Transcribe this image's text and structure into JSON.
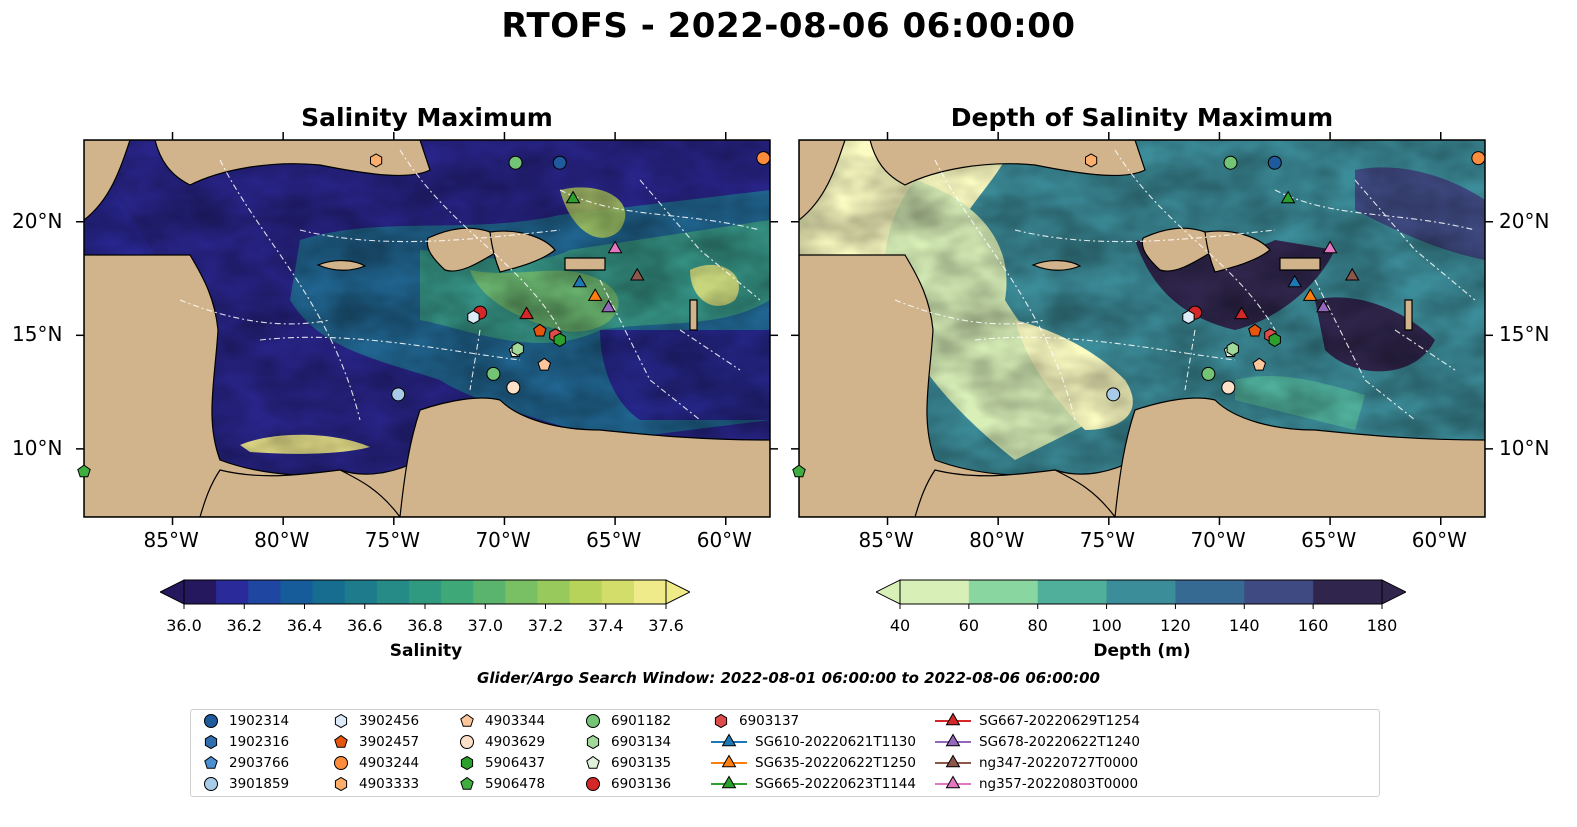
{
  "suptitle": "RTOFS - 2022-08-06 06:00:00",
  "panels": [
    {
      "title": "Salinity Maximum",
      "field": "salinity"
    },
    {
      "title": "Depth of Salinity Maximum",
      "field": "depth"
    }
  ],
  "map": {
    "lon_range": [
      -89,
      -58
    ],
    "lat_range": [
      7,
      23.6
    ],
    "lon_ticks": [
      -85,
      -80,
      -75,
      -70,
      -65,
      -60
    ],
    "lon_tick_labels": [
      "85°W",
      "80°W",
      "75°W",
      "70°W",
      "65°W",
      "60°W"
    ],
    "lat_ticks": [
      10,
      15,
      20
    ],
    "lat_tick_labels": [
      "10°N",
      "15°N",
      "20°N"
    ],
    "land_color": "#d2b48c",
    "lake_color": "#8eb4e3"
  },
  "colorbars": [
    {
      "label": "Salinity",
      "ticks": [
        "36.0",
        "36.2",
        "36.4",
        "36.6",
        "36.8",
        "37.0",
        "37.2",
        "37.4",
        "37.6"
      ],
      "colors": [
        "#26185f",
        "#2a2a9a",
        "#1f46a0",
        "#165b9a",
        "#166d8f",
        "#1d7b8b",
        "#268a86",
        "#2f9a7f",
        "#3fa878",
        "#5ab46e",
        "#79bf64",
        "#98c95c",
        "#b7d35a",
        "#d3dd6a",
        "#f0eb8a"
      ],
      "extend": "both"
    },
    {
      "label": "Depth (m)",
      "ticks": [
        "40",
        "60",
        "80",
        "100",
        "120",
        "140",
        "160",
        "180"
      ],
      "colors": [
        "#d8efb8",
        "#8ad6a1",
        "#4faf9b",
        "#3c8d9a",
        "#376a93",
        "#3f4a82",
        "#30264d"
      ],
      "extend": "both"
    }
  ],
  "search_window": "Glider/Argo Search Window: 2022-08-01 06:00:00 to 2022-08-06 06:00:00",
  "legend": [
    {
      "label": "1902314",
      "marker": "circle",
      "color": "#1f5a9c"
    },
    {
      "label": "1902316",
      "marker": "hexagon",
      "color": "#2f6faf"
    },
    {
      "label": "2903766",
      "marker": "pentagon",
      "color": "#4a90d0"
    },
    {
      "label": "3901859",
      "marker": "circle",
      "color": "#a8cce8"
    },
    {
      "label": "3902456",
      "marker": "hexagon",
      "color": "#dcebf7"
    },
    {
      "label": "3902457",
      "marker": "pentagon",
      "color": "#e6550d"
    },
    {
      "label": "4903244",
      "marker": "circle",
      "color": "#fd8d3c"
    },
    {
      "label": "4903333",
      "marker": "hexagon",
      "color": "#fdae6b"
    },
    {
      "label": "4903344",
      "marker": "pentagon",
      "color": "#fdc79b"
    },
    {
      "label": "4903629",
      "marker": "circle",
      "color": "#fde0c8"
    },
    {
      "label": "5906437",
      "marker": "hexagon",
      "color": "#2ca02c"
    },
    {
      "label": "5906478",
      "marker": "pentagon",
      "color": "#3fae3f"
    },
    {
      "label": "6901182",
      "marker": "circle",
      "color": "#74c476"
    },
    {
      "label": "6903134",
      "marker": "hexagon",
      "color": "#a1d99b"
    },
    {
      "label": "6903135",
      "marker": "pentagon",
      "color": "#dff3da"
    },
    {
      "label": "6903136",
      "marker": "circle",
      "color": "#d62728"
    },
    {
      "label": "6903137",
      "marker": "hexagon",
      "color": "#de4b4b"
    },
    {
      "label": "SG610-20220621T1130",
      "marker": "triangle",
      "color": "#1f77b4"
    },
    {
      "label": "SG635-20220622T1250",
      "marker": "triangle",
      "color": "#ff7f0e"
    },
    {
      "label": "SG665-20220623T1144",
      "marker": "triangle",
      "color": "#2ca02c"
    },
    {
      "label": "SG667-20220629T1254",
      "marker": "triangle",
      "color": "#d62728"
    },
    {
      "label": "SG678-20220622T1240",
      "marker": "triangle",
      "color": "#9467bd"
    },
    {
      "label": "ng347-20220727T0000",
      "marker": "triangle",
      "color": "#8c564b"
    },
    {
      "label": "ng357-20220803T0000",
      "marker": "triangle",
      "color": "#e377c2"
    }
  ],
  "observations": [
    {
      "id": "1902314",
      "lon": -67.5,
      "lat": 22.6
    },
    {
      "id": "6901182",
      "lon": -69.5,
      "lat": 22.6
    },
    {
      "id": "4903244",
      "lon": -58.3,
      "lat": 22.8
    },
    {
      "id": "4903333",
      "lon": -75.8,
      "lat": 22.7
    },
    {
      "id": "3901859",
      "lon": -74.8,
      "lat": 12.4
    },
    {
      "id": "6903136",
      "lon": -71.1,
      "lat": 16.0
    },
    {
      "id": "3902456",
      "lon": -71.4,
      "lat": 15.8
    },
    {
      "id": "6903137",
      "lon": -67.7,
      "lat": 15.0
    },
    {
      "id": "4903344",
      "lon": -68.2,
      "lat": 13.7
    },
    {
      "id": "4903629",
      "lon": -69.6,
      "lat": 12.7
    },
    {
      "id": "6903135",
      "lon": -69.5,
      "lat": 14.3
    },
    {
      "id": "6903134",
      "lon": -69.4,
      "lat": 14.4
    },
    {
      "id": "6901182b",
      "lon": -70.5,
      "lat": 13.3
    },
    {
      "id": "5906437",
      "lon": -67.5,
      "lat": 14.8
    },
    {
      "id": "3902457",
      "lon": -68.4,
      "lat": 15.2
    },
    {
      "id": "5906478",
      "lon": -89.0,
      "lat": 9.0
    },
    {
      "id": "SG610-20220621T1130",
      "lon": -66.6,
      "lat": 17.3
    },
    {
      "id": "SG635-20220622T1250",
      "lon": -65.9,
      "lat": 16.7
    },
    {
      "id": "SG665-20220623T1144",
      "lon": -66.9,
      "lat": 21.0
    },
    {
      "id": "SG667-20220629T1254",
      "lon": -69.0,
      "lat": 15.9
    },
    {
      "id": "SG678-20220622T1240",
      "lon": -65.3,
      "lat": 16.2
    },
    {
      "id": "ng347-20220727T0000",
      "lon": -64.0,
      "lat": 17.6
    },
    {
      "id": "ng357-20220803T0000",
      "lon": -65.0,
      "lat": 18.8
    }
  ]
}
